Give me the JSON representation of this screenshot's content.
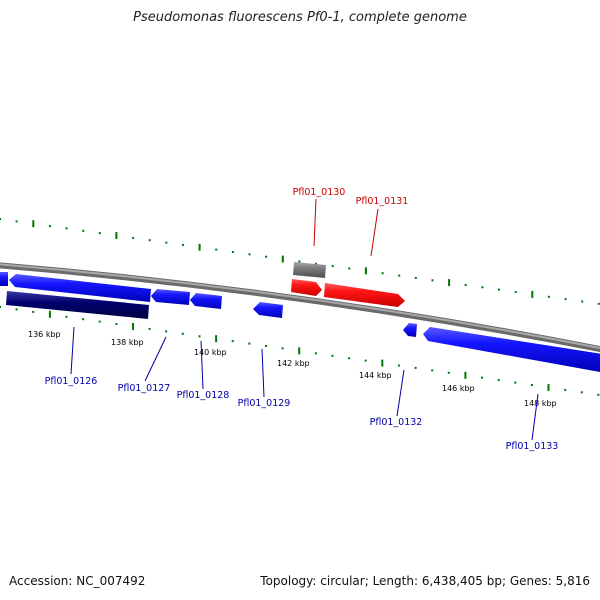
{
  "title": "Pseudomonas fluorescens Pf0-1, complete genome",
  "footer": {
    "accession_label": "Accession:",
    "accession": "NC_007492",
    "topology_label": "Topology:",
    "topology": "circular",
    "length_label": "Length:",
    "length": "6,438,405 bp",
    "genes_label": "Genes:",
    "genes": "5,816"
  },
  "colors": {
    "plus_strand": "#0000ee",
    "minus_strand": "#0000ee",
    "highlight": "#ee0000",
    "pseudo": "#777777",
    "dark": "#000077",
    "tick": "#007700",
    "backbone": "#888888",
    "forward_label": "#cc0000",
    "reverse_label": "#0000aa"
  },
  "scale_ticks": [
    "136 kbp",
    "138 kbp",
    "140 kbp",
    "142 kbp",
    "144 kbp",
    "146 kbp",
    "148 kbp"
  ],
  "genes": [
    {
      "id": "Pfl01_0126",
      "strand": "reverse",
      "color": "#0000ee"
    },
    {
      "id": "Pfl01_0127",
      "strand": "reverse",
      "color": "#0000ee"
    },
    {
      "id": "Pfl01_0128",
      "strand": "reverse",
      "color": "#0000ee"
    },
    {
      "id": "Pfl01_0129",
      "strand": "reverse",
      "color": "#0000ee"
    },
    {
      "id": "Pfl01_0130",
      "strand": "forward",
      "color": "#777777"
    },
    {
      "id": "Pfl01_0131",
      "strand": "forward",
      "color": "#ee0000"
    },
    {
      "id": "Pfl01_0132",
      "strand": "reverse",
      "color": "#0000ee"
    },
    {
      "id": "Pfl01_0133",
      "strand": "reverse",
      "color": "#0000ee"
    }
  ]
}
